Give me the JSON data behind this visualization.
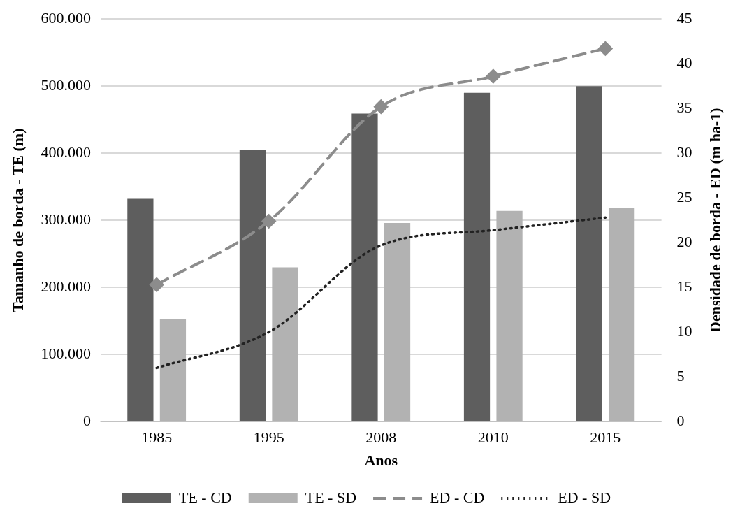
{
  "chart_data": {
    "type": "bar",
    "categories": [
      "1985",
      "1995",
      "2008",
      "2010",
      "2015"
    ],
    "xlabel": "Anos",
    "ylabel": "Tamanho de borda - TE (m)",
    "y2label": "Densidade de borda - ED (m ha-1)",
    "series": [
      {
        "name": "TE - CD",
        "color": "#5e5e5e",
        "values": [
          332000,
          405000,
          459000,
          490000,
          500000
        ]
      },
      {
        "name": "TE - SD",
        "color": "#b2b2b2",
        "values": [
          153000,
          230000,
          296000,
          314000,
          318000
        ]
      },
      {
        "name": "ED - CD",
        "type": "line",
        "axis": "y2",
        "color": "#8c8c8c",
        "line_style": "dashed",
        "marker": "diamond",
        "values": [
          15.3,
          22.4,
          35.2,
          38.6,
          41.7
        ]
      },
      {
        "name": "ED - SD",
        "type": "line",
        "axis": "y2",
        "color": "#222222",
        "line_style": "dotted",
        "marker": "none",
        "values": [
          6.0,
          10.0,
          19.7,
          21.4,
          22.8
        ]
      }
    ],
    "ylim": [
      0,
      600000
    ],
    "yticks": [
      0,
      {
        "value": 100000,
        "label": "100.000"
      },
      {
        "value": 200000,
        "label": "200.000"
      },
      {
        "value": 300000,
        "label": "300.000"
      },
      {
        "value": 400000,
        "label": "400.000"
      },
      {
        "value": 500000,
        "label": "500.000"
      },
      {
        "value": 600000,
        "label": "600.000"
      }
    ],
    "y2lim": [
      0,
      45
    ],
    "y2ticks": [
      0,
      5,
      10,
      15,
      20,
      25,
      30,
      35,
      40,
      45
    ],
    "grid": "y",
    "legend": "bottom"
  }
}
